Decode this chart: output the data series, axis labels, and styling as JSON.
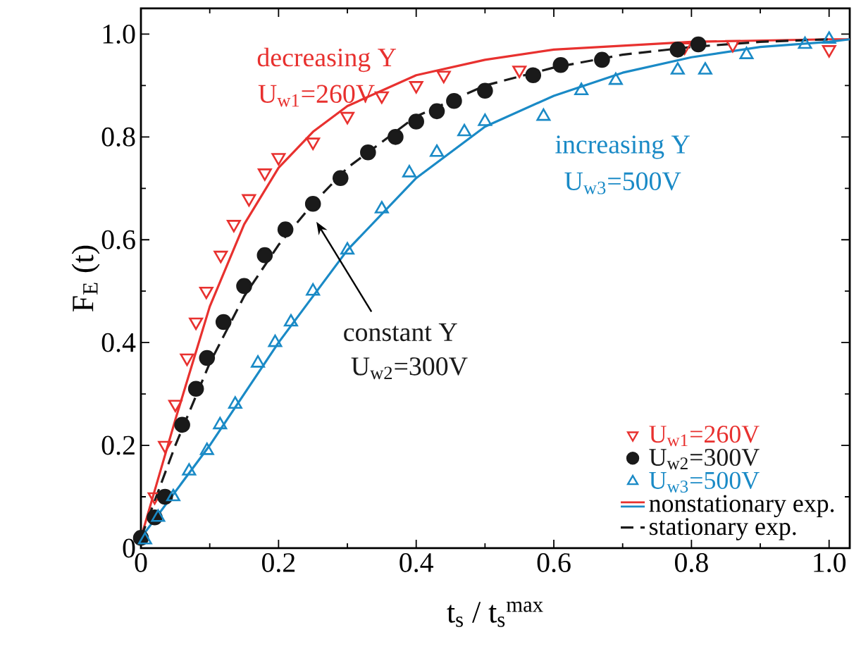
{
  "chart_data": {
    "type": "scatter",
    "xlabel": "t$_{s}$ / t$_{s}$$^{max}$",
    "ylabel": "F$_{E}$ (t)",
    "xlim": [
      0,
      1.03
    ],
    "ylim": [
      0,
      1.05
    ],
    "xticks": [
      0,
      0.2,
      0.4,
      0.6,
      0.8,
      {
        "value": 1,
        "label": "1.0"
      }
    ],
    "yticks": [
      0,
      0.2,
      0.4,
      0.6,
      0.8,
      {
        "value": 1,
        "label": "1.0"
      }
    ],
    "legend": "bottom right",
    "grid": false,
    "series": [
      {
        "name": "U$_{w1}$=260V",
        "color": "#e8312f",
        "marker": "triangle-down",
        "x": [
          0.02,
          0.035,
          0.05,
          0.067,
          0.08,
          0.095,
          0.116,
          0.135,
          0.157,
          0.18,
          0.2,
          0.25,
          0.3,
          0.35,
          0.4,
          0.44,
          0.55,
          0.79,
          0.86,
          1.0
        ],
        "values": [
          0.1,
          0.2,
          0.28,
          0.37,
          0.44,
          0.5,
          0.57,
          0.63,
          0.68,
          0.73,
          0.76,
          0.79,
          0.84,
          0.88,
          0.9,
          0.92,
          0.93,
          0.975,
          0.98,
          0.97
        ]
      },
      {
        "name": "U$_{w2}$=300V",
        "color": "#1a1a1a",
        "marker": "circle",
        "x": [
          0.0,
          0.02,
          0.035,
          0.06,
          0.08,
          0.096,
          0.12,
          0.15,
          0.18,
          0.21,
          0.25,
          0.29,
          0.33,
          0.37,
          0.4,
          0.43,
          0.455,
          0.5,
          0.57,
          0.61,
          0.67,
          0.78,
          0.81
        ],
        "values": [
          0.02,
          0.06,
          0.1,
          0.24,
          0.31,
          0.37,
          0.44,
          0.51,
          0.57,
          0.62,
          0.67,
          0.72,
          0.77,
          0.8,
          0.83,
          0.85,
          0.87,
          0.89,
          0.92,
          0.94,
          0.95,
          0.97,
          0.98
        ]
      },
      {
        "name": "U$_{w3}$=500V",
        "color": "#1a8ac6",
        "marker": "triangle",
        "x": [
          0.006,
          0.025,
          0.047,
          0.07,
          0.096,
          0.115,
          0.137,
          0.17,
          0.195,
          0.218,
          0.25,
          0.3,
          0.35,
          0.39,
          0.43,
          0.47,
          0.5,
          0.585,
          0.64,
          0.69,
          0.78,
          0.82,
          0.88,
          0.965,
          1.0
        ],
        "values": [
          0.016,
          0.06,
          0.1,
          0.15,
          0.19,
          0.24,
          0.28,
          0.36,
          0.4,
          0.44,
          0.5,
          0.58,
          0.66,
          0.73,
          0.77,
          0.81,
          0.83,
          0.84,
          0.89,
          0.91,
          0.93,
          0.93,
          0.96,
          0.98,
          0.99
        ]
      },
      {
        "name": "nonstationary exp.",
        "type": "line",
        "color": "#e8312f",
        "line_style": "solid",
        "marker": "none",
        "x": [
          0,
          0.05,
          0.1,
          0.15,
          0.2,
          0.25,
          0.3,
          0.4,
          0.5,
          0.6,
          0.8,
          1.0,
          1.03
        ],
        "values": [
          0.02,
          0.25,
          0.47,
          0.63,
          0.74,
          0.81,
          0.86,
          0.92,
          0.95,
          0.97,
          0.985,
          0.99,
          0.99
        ]
      },
      {
        "type": "line",
        "color": "#1a8ac6",
        "line_style": "solid",
        "marker": "none",
        "x": [
          0,
          0.1,
          0.2,
          0.3,
          0.4,
          0.5,
          0.6,
          0.7,
          0.8,
          0.9,
          1.0,
          1.03
        ],
        "values": [
          0.02,
          0.2,
          0.4,
          0.58,
          0.72,
          0.82,
          0.88,
          0.925,
          0.955,
          0.975,
          0.985,
          0.99
        ]
      },
      {
        "name": "stationary exp.",
        "type": "line",
        "color": "#1a1a1a",
        "line_style": "dashed",
        "marker": "none",
        "x": [
          0,
          0.05,
          0.1,
          0.15,
          0.2,
          0.25,
          0.3,
          0.35,
          0.4,
          0.45,
          0.5,
          0.6,
          0.7,
          0.8,
          0.9,
          1.0
        ],
        "values": [
          0.02,
          0.2,
          0.36,
          0.49,
          0.59,
          0.67,
          0.74,
          0.79,
          0.84,
          0.87,
          0.9,
          0.935,
          0.96,
          0.975,
          0.985,
          0.99
        ]
      }
    ],
    "annotations": [
      "decreasing Y",
      "U$_{w1}$=260V",
      "constant Y",
      "U$_{w2}$=300V",
      "increasing Y",
      "U$_{w3}$=500V"
    ]
  }
}
